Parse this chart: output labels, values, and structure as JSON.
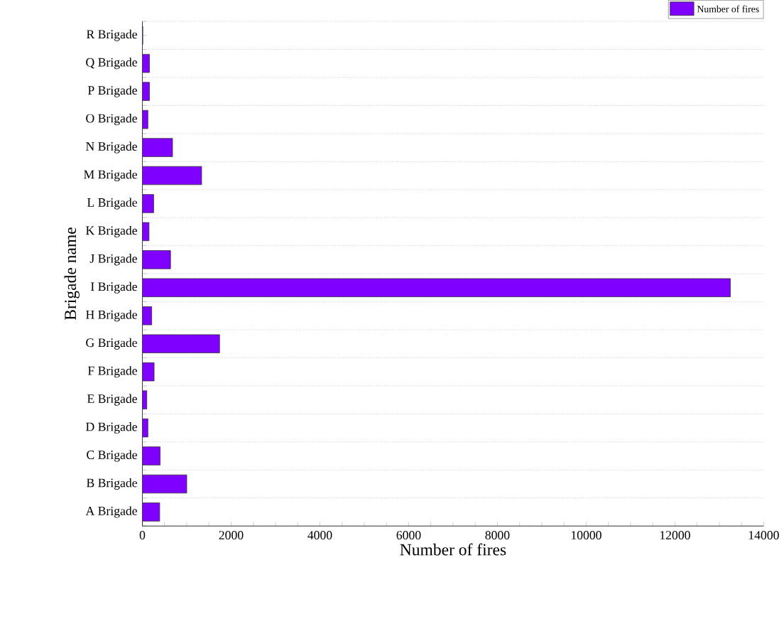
{
  "chart_data": {
    "type": "bar",
    "orientation": "horizontal",
    "xlabel": "Number of fires",
    "ylabel": "Brigade name",
    "categories": [
      "R Brigade",
      "Q Brigade",
      "P Brigade",
      "O Brigade",
      "N Brigade",
      "M Brigade",
      "L Brigade",
      "K Brigade",
      "J Brigade",
      "I Brigade",
      "H Brigade",
      "G Brigade",
      "F Brigade",
      "E Brigade",
      "D Brigade",
      "C Brigade",
      "B Brigade",
      "A Brigade"
    ],
    "series": [
      {
        "name": "Number of fires",
        "color": "#7f00ff",
        "values": [
          10,
          160,
          160,
          125,
          680,
          1335,
          255,
          150,
          635,
          13250,
          210,
          1740,
          265,
          100,
          125,
          400,
          1000,
          390
        ]
      }
    ],
    "xlim": [
      0,
      14000
    ],
    "xticks": [
      0,
      2000,
      4000,
      6000,
      8000,
      10000,
      12000,
      14000
    ],
    "grid": "y",
    "legend": "top right"
  }
}
